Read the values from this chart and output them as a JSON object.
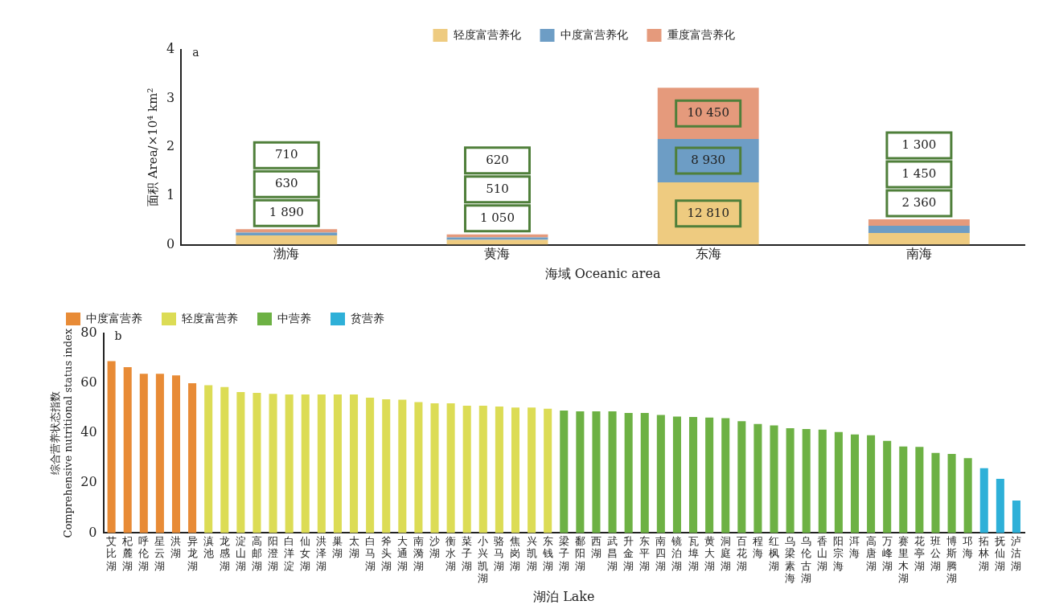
{
  "chart_data": [
    {
      "type": "bar",
      "stacked": true,
      "xlabel": "海域 Oceanic area",
      "ylabel": "面积 Area/×10⁴ km²",
      "annotations": [
        "a",
        "1 890",
        "630",
        "710",
        "1 050",
        "510",
        "620",
        "12 810",
        "8 930",
        "10 450",
        "2 360",
        "1 450",
        "1 300"
      ],
      "legend": "top",
      "grid": false,
      "categories": [
        "渤海",
        "黄海",
        "东海",
        "南海"
      ],
      "ylim": [
        0,
        4
      ],
      "yticks": [
        0,
        1,
        2,
        3,
        4
      ],
      "series": [
        {
          "name": "轻度富营养化",
          "color": "#eecb80",
          "values": [
            0.19,
            0.1,
            1.28,
            0.24
          ]
        },
        {
          "name": "中度富营养化",
          "color": "#6d9dc5",
          "values": [
            0.06,
            0.05,
            0.89,
            0.15
          ]
        },
        {
          "name": "重度富营养化",
          "color": "#e59a7c",
          "values": [
            0.07,
            0.06,
            1.05,
            0.13
          ]
        }
      ]
    },
    {
      "type": "bar",
      "xlabel": "湖泊 Lake",
      "ylabel": "综合营养状态指数 Comprehensive nutritional status index",
      "annotations": [
        "b"
      ],
      "legend": "top left",
      "grid": false,
      "categories": [
        "艾比湖",
        "杞麓湖",
        "呼伦湖",
        "星云湖",
        "洪湖",
        "异龙湖",
        "滇池",
        "龙感湖",
        "淀山湖",
        "高邮湖",
        "阳澄湖",
        "白洋淀",
        "仙女湖",
        "洪泽湖",
        "巢湖",
        "太湖",
        "白马湖",
        "斧头湖",
        "大通湖",
        "南漪湖",
        "沙湖",
        "衡水湖",
        "菜子湖",
        "小兴凯湖",
        "骆马湖",
        "焦岗湖",
        "兴凯湖",
        "东钱湖",
        "梁子湖",
        "鄱阳湖",
        "西湖",
        "武昌湖",
        "升金湖",
        "东平湖",
        "南四湖",
        "镜泊湖",
        "瓦埠湖",
        "黄大湖",
        "洞庭湖",
        "百花湖",
        "程海",
        "红枫湖",
        "乌梁素海",
        "乌伦古湖",
        "香山湖",
        "阳宗海",
        "洱海",
        "高唐湖",
        "万峰湖",
        "赛里木湖",
        "花亭湖",
        "班公湖",
        "博斯腾湖",
        "邛海",
        "拓林湖",
        "抚仙湖",
        "泸沽湖"
      ],
      "ylim": [
        0,
        80
      ],
      "yticks": [
        0,
        20,
        40,
        60,
        80
      ],
      "series": [
        {
          "name": "中度富营养",
          "color": "#e88b36",
          "values": [
            68.9,
            66.5,
            63.8,
            63.8,
            63.2,
            60,
            null,
            null,
            null,
            null,
            null,
            null,
            null,
            null,
            null,
            null,
            null,
            null,
            null,
            null,
            null,
            null,
            null,
            null,
            null,
            null,
            null,
            null,
            null,
            null,
            null,
            null,
            null,
            null,
            null,
            null,
            null,
            null,
            null,
            null,
            null,
            null,
            null,
            null,
            null,
            null,
            null,
            null,
            null,
            null,
            null,
            null,
            null,
            null,
            null,
            null,
            null
          ]
        },
        {
          "name": "轻度富营养",
          "color": "#dcdc55",
          "values": [
            null,
            null,
            null,
            null,
            null,
            null,
            59.2,
            58.5,
            56.5,
            56.2,
            55.8,
            55.5,
            55.5,
            55.5,
            55.5,
            55.5,
            54.2,
            53.6,
            53.4,
            52.5,
            52,
            52,
            51,
            51,
            50.7,
            50.3,
            50.3,
            49.8,
            null,
            null,
            null,
            null,
            null,
            null,
            null,
            null,
            null,
            null,
            null,
            null,
            null,
            null,
            null,
            null,
            null,
            null,
            null,
            null,
            null,
            null,
            null,
            null,
            null,
            null,
            null,
            null,
            null
          ]
        },
        {
          "name": "中营养",
          "color": "#6db144",
          "values": [
            null,
            null,
            null,
            null,
            null,
            null,
            null,
            null,
            null,
            null,
            null,
            null,
            null,
            null,
            null,
            null,
            null,
            null,
            null,
            null,
            null,
            null,
            null,
            null,
            null,
            null,
            null,
            null,
            49.1,
            48.8,
            48.8,
            48.8,
            48.1,
            48.1,
            47.3,
            46.7,
            46.5,
            46.3,
            46,
            44.8,
            43.7,
            43.1,
            42,
            41.7,
            41.4,
            40.5,
            39.5,
            39.2,
            36.9,
            34.7,
            34.5,
            32.1,
            31.7,
            30,
            null,
            null,
            null
          ]
        },
        {
          "name": "贫营养",
          "color": "#2eb0d8",
          "values": [
            null,
            null,
            null,
            null,
            null,
            null,
            null,
            null,
            null,
            null,
            null,
            null,
            null,
            null,
            null,
            null,
            null,
            null,
            null,
            null,
            null,
            null,
            null,
            null,
            null,
            null,
            null,
            null,
            null,
            null,
            null,
            null,
            null,
            null,
            null,
            null,
            null,
            null,
            null,
            null,
            null,
            null,
            null,
            null,
            null,
            null,
            null,
            null,
            null,
            null,
            null,
            null,
            null,
            null,
            26,
            21.7,
            13
          ]
        }
      ]
    }
  ]
}
